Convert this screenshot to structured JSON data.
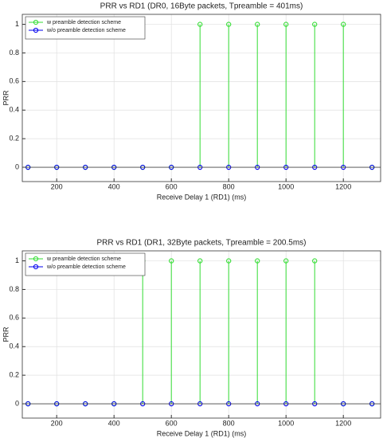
{
  "chart_data": [
    {
      "type": "stem",
      "title": "PRR vs RD1 (DR0, 16Byte packets, Tpreamble = 401ms)",
      "x_label": "Receive Delay 1 (RD1) (ms)",
      "y_label": "PRR",
      "x": [
        100,
        200,
        300,
        400,
        500,
        600,
        700,
        800,
        900,
        1000,
        1100,
        1200,
        1300
      ],
      "series": [
        {
          "name": "w preamble detection scheme",
          "color": "#33dd33",
          "values": [
            0,
            0,
            0,
            0,
            0,
            0,
            1,
            1,
            1,
            1,
            1,
            1,
            0
          ]
        },
        {
          "name": "w/o preamble detection scheme",
          "color": "#0000ee",
          "values": [
            0,
            0,
            0,
            0,
            0,
            0,
            0,
            0,
            0,
            0,
            0,
            0,
            0
          ]
        }
      ],
      "xlim": [
        80,
        1330
      ],
      "ylim": [
        -0.1,
        1.07
      ],
      "xticks": [
        200,
        400,
        600,
        800,
        1000,
        1200
      ],
      "yticks": [
        0,
        0.2,
        0.4,
        0.6,
        0.8,
        1
      ],
      "grid": true,
      "legend": "northwest"
    },
    {
      "type": "stem",
      "title": "PRR vs RD1 (DR1, 32Byte packets, Tpreamble = 200.5ms)",
      "x_label": "Receive Delay 1 (RD1) (ms)",
      "y_label": "PRR",
      "x": [
        100,
        200,
        300,
        400,
        500,
        600,
        700,
        800,
        900,
        1000,
        1100,
        1200,
        1300
      ],
      "series": [
        {
          "name": "w preamble detection scheme",
          "color": "#33dd33",
          "values": [
            0,
            0,
            0,
            0,
            1,
            1,
            1,
            1,
            1,
            1,
            1,
            0,
            0
          ]
        },
        {
          "name": "w/o preamble detection scheme",
          "color": "#0000ee",
          "values": [
            0,
            0,
            0,
            0,
            0,
            0,
            0,
            0,
            0,
            0,
            0,
            0,
            0
          ]
        }
      ],
      "xlim": [
        80,
        1330
      ],
      "ylim": [
        -0.1,
        1.07
      ],
      "xticks": [
        200,
        400,
        600,
        800,
        1000,
        1200
      ],
      "yticks": [
        0,
        0.2,
        0.4,
        0.6,
        0.8,
        1
      ],
      "grid": true,
      "legend": "northwest"
    }
  ]
}
